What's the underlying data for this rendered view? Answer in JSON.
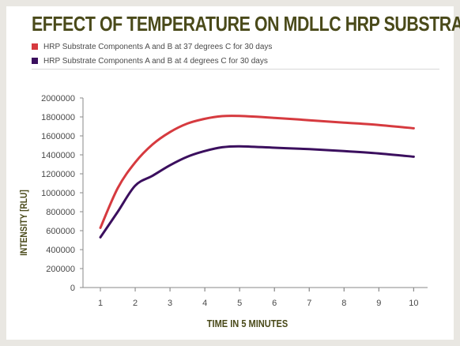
{
  "colors": {
    "title": "#4a4a1a",
    "series_37C": "#d63a3f",
    "series_4C": "#3b0f5e",
    "axis": "#8a8a8a",
    "text": "#4a4a4a"
  },
  "chart_data": {
    "type": "line",
    "title": "EFFECT OF TEMPERATURE ON MDLLC HRP SUBSTRATE",
    "xlabel": "TIME IN 5 MINUTES",
    "ylabel": "INTENSITY [RLU]",
    "xlim": [
      0.5,
      10.4
    ],
    "ylim": [
      0,
      2000000
    ],
    "xticks": [
      1,
      2,
      3,
      4,
      5,
      6,
      7,
      8,
      9,
      10
    ],
    "yticks": [
      0,
      200000,
      400000,
      600000,
      800000,
      1000000,
      1200000,
      1400000,
      1600000,
      1800000,
      2000000
    ],
    "ytick_labels": [
      "0",
      "200000",
      "400000",
      "600000",
      "800000",
      "1000000",
      "1200000",
      "1400000",
      "1600000",
      "1800000",
      "2000000"
    ],
    "grid": false,
    "legend_position": "top-left",
    "series": [
      {
        "name": "HRP Substrate Components A and B at 37 degrees C for 30 days",
        "x": [
          1,
          1.5,
          2,
          2.5,
          3,
          3.5,
          4,
          4.5,
          5,
          6,
          7,
          8,
          9,
          10
        ],
        "y": [
          630000,
          1050000,
          1320000,
          1510000,
          1640000,
          1730000,
          1780000,
          1808000,
          1810000,
          1790000,
          1765000,
          1740000,
          1715000,
          1680000
        ]
      },
      {
        "name": "HRP Substrate Components A and B at 4 degrees C for 30 days",
        "x": [
          1,
          1.5,
          2,
          2.5,
          3,
          3.5,
          4,
          4.5,
          5,
          6,
          7,
          8,
          9,
          10
        ],
        "y": [
          530000,
          800000,
          1075000,
          1180000,
          1290000,
          1380000,
          1440000,
          1480000,
          1490000,
          1475000,
          1460000,
          1440000,
          1415000,
          1380000
        ]
      }
    ]
  }
}
